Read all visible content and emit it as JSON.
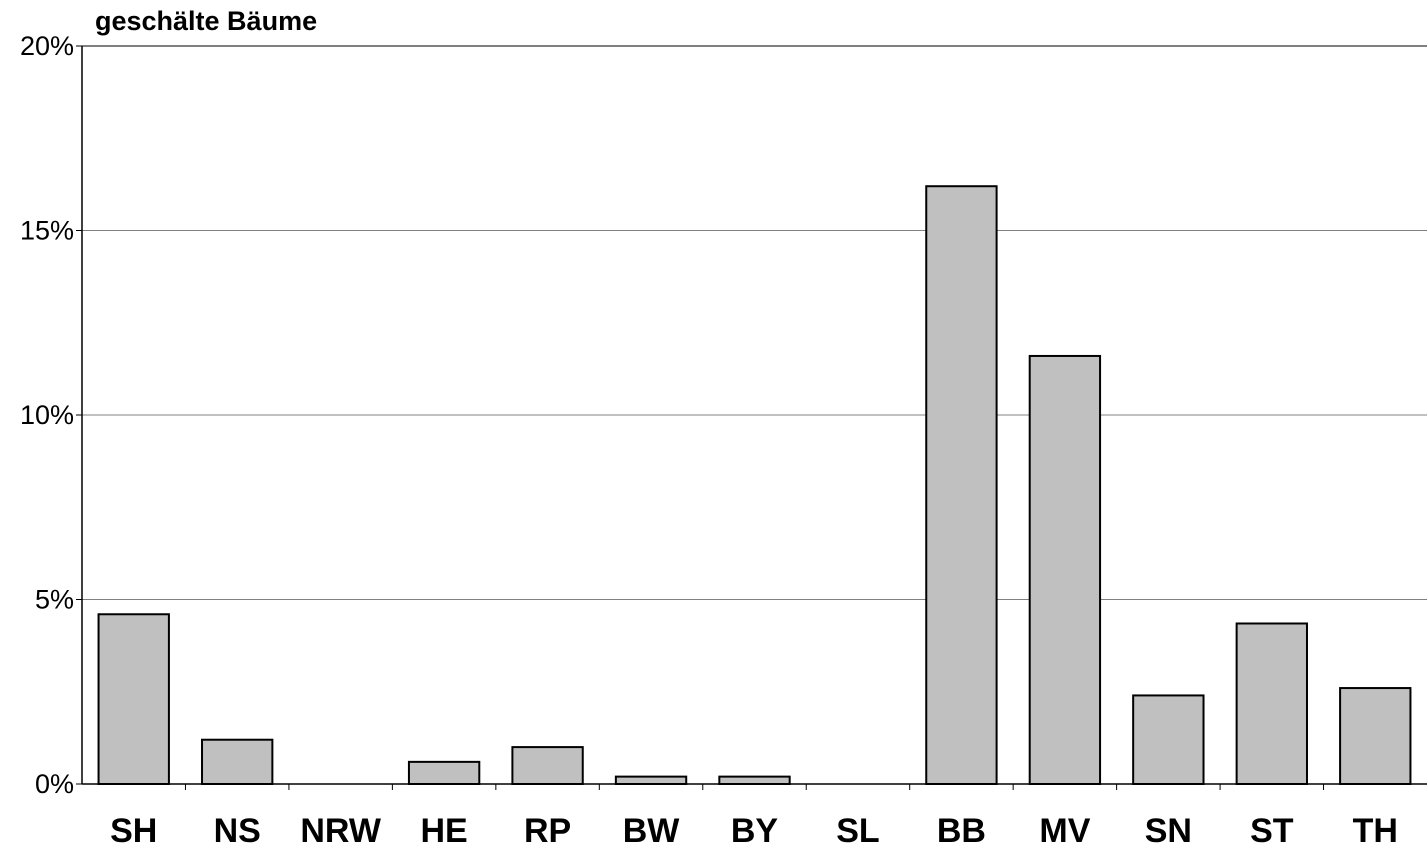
{
  "chart_data": {
    "type": "bar",
    "title": "geschälte Bäume",
    "xlabel": "",
    "ylabel": "",
    "categories": [
      "SH",
      "NS",
      "NRW",
      "HE",
      "RP",
      "BW",
      "BY",
      "SL",
      "BB",
      "MV",
      "SN",
      "ST",
      "TH"
    ],
    "values": [
      4.6,
      1.2,
      0.0,
      0.6,
      1.0,
      0.2,
      0.2,
      0.0,
      16.2,
      11.6,
      2.4,
      4.35,
      2.6
    ],
    "ylim": [
      0,
      20
    ],
    "yticks": [
      0,
      5,
      10,
      15,
      20
    ],
    "ytick_labels": [
      "0%",
      "5%",
      "10%",
      "15%",
      "20%"
    ],
    "grid": true,
    "legend": "none",
    "colors": {
      "bar_fill": "#c0c0c0",
      "bar_stroke": "#000000",
      "grid": "#808080",
      "axis": "#000000",
      "background": "#ffffff"
    }
  }
}
